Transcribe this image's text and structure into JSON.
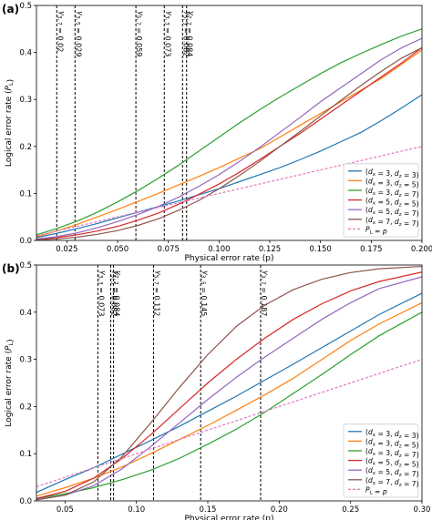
{
  "chart_data": [
    {
      "panel": "(a)",
      "type": "line",
      "xlabel": "Physical error rate (p)",
      "ylabel": "Logical error rate (P_L)",
      "xlim": [
        0.01,
        0.2
      ],
      "ylim": [
        0.0,
        0.5
      ],
      "xticks": [
        0.025,
        0.05,
        0.075,
        0.1,
        0.125,
        0.15,
        0.175,
        0.2
      ],
      "xtick_labels": [
        "0.025",
        "0.050",
        "0.075",
        "0.100",
        "0.125",
        "0.150",
        "0.175",
        "0.200"
      ],
      "yticks": [
        0.0,
        0.1,
        0.2,
        0.3,
        0.4,
        0.5
      ],
      "ytick_labels": [
        "0.0",
        "0.1",
        "0.2",
        "0.3",
        "0.4",
        "0.5"
      ],
      "grid": false,
      "legend_position": "bottom-right",
      "thresholds": [
        {
          "x": 0.02,
          "label": "γ3,7 = 0.02"
        },
        {
          "x": 0.029,
          "label": "γ3,5 = 0.029"
        },
        {
          "x": 0.059,
          "label": "γ5,7 = 0.059"
        },
        {
          "x": 0.073,
          "label": "γ3,3 = 0.073"
        },
        {
          "x": 0.082,
          "label": "γ5,5 = 0.082"
        },
        {
          "x": 0.084,
          "label": "γ7,7 = 0.084"
        }
      ],
      "x": [
        0.01,
        0.02,
        0.03,
        0.04,
        0.05,
        0.06,
        0.07,
        0.08,
        0.09,
        0.1,
        0.11,
        0.12,
        0.13,
        0.14,
        0.15,
        0.16,
        0.17,
        0.18,
        0.19,
        0.2
      ],
      "series": [
        {
          "name": "(dx = 3, dz = 3)",
          "color": "#1f77b4",
          "values": [
            0.006,
            0.015,
            0.025,
            0.036,
            0.048,
            0.06,
            0.072,
            0.084,
            0.097,
            0.11,
            0.125,
            0.14,
            0.155,
            0.172,
            0.19,
            0.21,
            0.23,
            0.255,
            0.282,
            0.31
          ]
        },
        {
          "name": "(dx = 3, dz = 5)",
          "color": "#ff7f0e",
          "values": [
            0.008,
            0.02,
            0.034,
            0.05,
            0.066,
            0.083,
            0.1,
            0.118,
            0.136,
            0.155,
            0.175,
            0.195,
            0.22,
            0.245,
            0.27,
            0.295,
            0.32,
            0.345,
            0.375,
            0.405
          ]
        },
        {
          "name": "(dx = 3, dz = 7)",
          "color": "#2ca02c",
          "values": [
            0.012,
            0.025,
            0.041,
            0.06,
            0.082,
            0.106,
            0.132,
            0.16,
            0.19,
            0.22,
            0.25,
            0.278,
            0.305,
            0.33,
            0.355,
            0.378,
            0.398,
            0.417,
            0.435,
            0.45
          ]
        },
        {
          "name": "(dx = 5, dz = 5)",
          "color": "#d62728",
          "values": [
            0.002,
            0.006,
            0.012,
            0.02,
            0.03,
            0.043,
            0.058,
            0.077,
            0.098,
            0.12,
            0.145,
            0.172,
            0.2,
            0.228,
            0.258,
            0.288,
            0.318,
            0.348,
            0.378,
            0.41
          ]
        },
        {
          "name": "(dx = 5, dz = 7)",
          "color": "#9467bd",
          "values": [
            0.003,
            0.008,
            0.016,
            0.027,
            0.04,
            0.055,
            0.072,
            0.092,
            0.115,
            0.14,
            0.168,
            0.198,
            0.23,
            0.262,
            0.295,
            0.325,
            0.355,
            0.385,
            0.41,
            0.43
          ]
        },
        {
          "name": "(dx = 7, dz = 7)",
          "color": "#8c564b",
          "values": [
            0.001,
            0.003,
            0.007,
            0.013,
            0.021,
            0.032,
            0.046,
            0.064,
            0.085,
            0.11,
            0.138,
            0.168,
            0.2,
            0.232,
            0.265,
            0.298,
            0.33,
            0.36,
            0.388,
            0.41
          ]
        },
        {
          "name": "P_L = p",
          "color": "#e377c2",
          "dashed": true,
          "values": [
            0.01,
            0.02,
            0.03,
            0.04,
            0.05,
            0.06,
            0.07,
            0.08,
            0.09,
            0.1,
            0.11,
            0.12,
            0.13,
            0.14,
            0.15,
            0.16,
            0.17,
            0.18,
            0.19,
            0.2
          ]
        }
      ]
    },
    {
      "panel": "(b)",
      "type": "line",
      "xlabel": "Physical error rate (p)",
      "ylabel": "Logical error rate (P_L)",
      "xlim": [
        0.03,
        0.3
      ],
      "ylim": [
        0.0,
        0.5
      ],
      "xticks": [
        0.05,
        0.1,
        0.15,
        0.2,
        0.25,
        0.3
      ],
      "xtick_labels": [
        "0.05",
        "0.10",
        "0.15",
        "0.20",
        "0.25",
        "0.30"
      ],
      "yticks": [
        0.0,
        0.1,
        0.2,
        0.3,
        0.4,
        0.5
      ],
      "ytick_labels": [
        "0.0",
        "0.1",
        "0.2",
        "0.3",
        "0.4",
        "0.5"
      ],
      "grid": false,
      "legend_position": "bottom-right",
      "thresholds": [
        {
          "x": 0.073,
          "label": "γ3,3 = 0.073"
        },
        {
          "x": 0.082,
          "label": "γ5,5 = 0.082"
        },
        {
          "x": 0.084,
          "label": "γ7,7 = 0.084"
        },
        {
          "x": 0.112,
          "label": "γ5,7 = 0.112"
        },
        {
          "x": 0.145,
          "label": "γ3,5 = 0.145"
        },
        {
          "x": 0.187,
          "label": "γ3,7 = 0.187"
        }
      ],
      "x": [
        0.03,
        0.05,
        0.07,
        0.09,
        0.11,
        0.13,
        0.15,
        0.17,
        0.19,
        0.21,
        0.23,
        0.25,
        0.27,
        0.3
      ],
      "series": [
        {
          "name": "(dx = 3, dz = 3)",
          "color": "#1f77b4",
          "values": [
            0.018,
            0.045,
            0.07,
            0.099,
            0.128,
            0.158,
            0.19,
            0.222,
            0.256,
            0.29,
            0.325,
            0.36,
            0.395,
            0.44
          ]
        },
        {
          "name": "(dx = 3, dz = 5)",
          "color": "#ff7f0e",
          "values": [
            0.01,
            0.028,
            0.048,
            0.072,
            0.1,
            0.13,
            0.16,
            0.192,
            0.225,
            0.26,
            0.3,
            0.34,
            0.375,
            0.42
          ]
        },
        {
          "name": "(dx = 3, dz = 7)",
          "color": "#2ca02c",
          "values": [
            0.005,
            0.015,
            0.028,
            0.045,
            0.065,
            0.09,
            0.12,
            0.152,
            0.188,
            0.228,
            0.268,
            0.31,
            0.35,
            0.4
          ]
        },
        {
          "name": "(dx = 5, dz = 5)",
          "color": "#d62728",
          "values": [
            0.005,
            0.02,
            0.048,
            0.09,
            0.14,
            0.195,
            0.25,
            0.3,
            0.345,
            0.385,
            0.418,
            0.445,
            0.465,
            0.485
          ]
        },
        {
          "name": "(dx = 5, dz = 7)",
          "color": "#9467bd",
          "values": [
            0.003,
            0.012,
            0.032,
            0.068,
            0.115,
            0.165,
            0.215,
            0.262,
            0.305,
            0.345,
            0.385,
            0.42,
            0.45,
            0.475
          ]
        },
        {
          "name": "(dx = 7, dz = 7)",
          "color": "#8c564b",
          "values": [
            0.002,
            0.012,
            0.04,
            0.094,
            0.165,
            0.24,
            0.31,
            0.37,
            0.415,
            0.448,
            0.47,
            0.484,
            0.492,
            0.497
          ]
        },
        {
          "name": "P_L = p",
          "color": "#e377c2",
          "dashed": true,
          "values": [
            0.03,
            0.05,
            0.07,
            0.09,
            0.11,
            0.13,
            0.15,
            0.17,
            0.19,
            0.21,
            0.23,
            0.25,
            0.27,
            0.3
          ]
        }
      ]
    }
  ]
}
